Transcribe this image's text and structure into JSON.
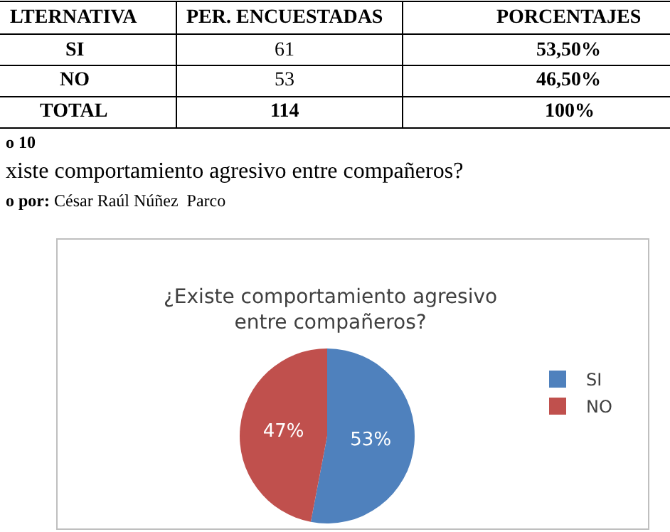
{
  "chart_data": {
    "type": "pie",
    "title": "¿Existe comportamiento agresivo entre compañeros?",
    "categories": [
      "SI",
      "NO"
    ],
    "values": [
      53,
      47
    ],
    "colors": [
      "#4f81bd",
      "#c0504d"
    ],
    "value_labels": [
      "53%",
      "47%"
    ],
    "legend": "right",
    "annotations": [
      "LTERNATIVA",
      "PER. ENCUESTADAS",
      "PORCENTAJES",
      "SI",
      "61",
      "53,50%",
      "NO",
      "53",
      "46,50%",
      "TOTAL",
      "114",
      "100%",
      "o 10",
      "xiste comportamiento agresivo entre compañeros?",
      "o por: César Raúl Núñez  Parco"
    ]
  }
}
